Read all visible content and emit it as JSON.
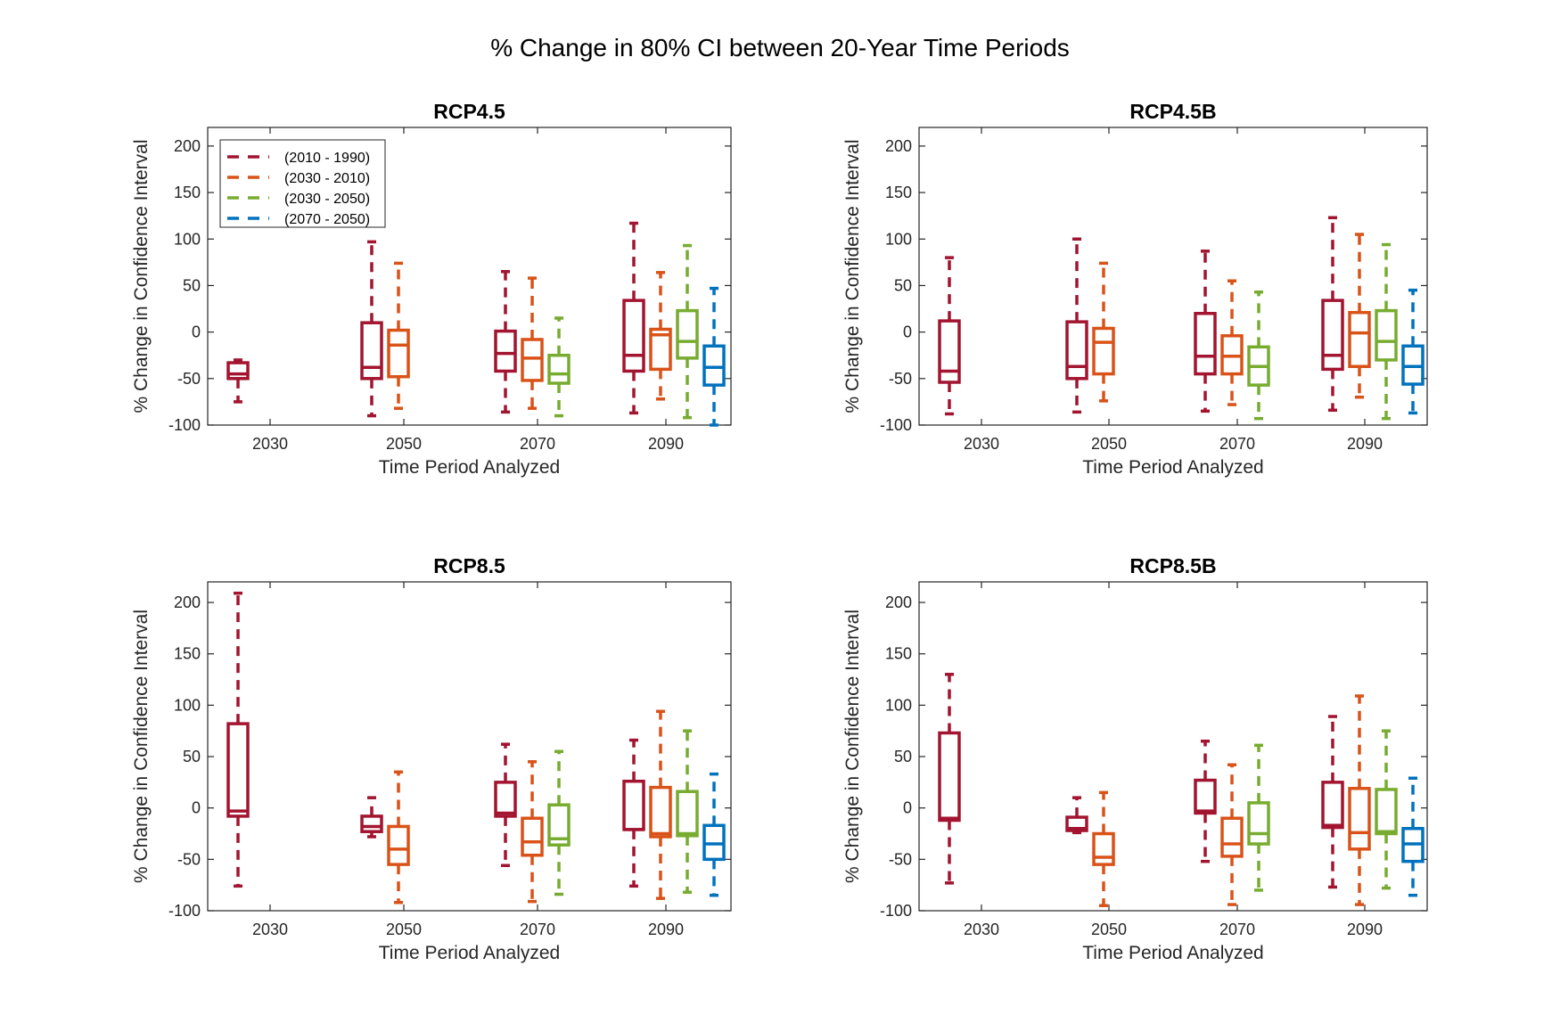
{
  "figure": {
    "title": "% Change in 80% CI between 20-Year Time Periods"
  },
  "colors": {
    "s1": "#a2142f",
    "s2": "#d95319",
    "s3": "#77ac30",
    "s4": "#0072bd"
  },
  "legend": {
    "placement": "top-left",
    "entries": [
      "(2010 - 1990)",
      "(2030 - 2010)",
      "(2030 - 2050)",
      "(2070 - 2050)"
    ]
  },
  "chart_data": [
    {
      "type": "box",
      "title": "RCP4.5",
      "xlabel": "Time Period Analyzed",
      "ylabel": "% Change in Confidence Interval",
      "ylim": [
        -100,
        220
      ],
      "yticks": [
        -100,
        -50,
        0,
        50,
        100,
        150,
        200
      ],
      "categories": [
        "2030",
        "2050",
        "2070",
        "2090"
      ],
      "show_legend": true,
      "boxes": [
        {
          "category": "2030",
          "series": 0,
          "min": -75,
          "q1": -50,
          "median": -45,
          "q3": -33,
          "max": -30
        },
        {
          "category": "2050",
          "series": 0,
          "min": -90,
          "q1": -50,
          "median": -38,
          "q3": 10,
          "max": 97
        },
        {
          "category": "2050",
          "series": 1,
          "min": -82,
          "q1": -48,
          "median": -14,
          "q3": 2,
          "max": 74
        },
        {
          "category": "2070",
          "series": 0,
          "min": -86,
          "q1": -42,
          "median": -23,
          "q3": 1,
          "max": 65
        },
        {
          "category": "2070",
          "series": 1,
          "min": -82,
          "q1": -52,
          "median": -28,
          "q3": -8,
          "max": 58
        },
        {
          "category": "2070",
          "series": 2,
          "min": -90,
          "q1": -55,
          "median": -45,
          "q3": -25,
          "max": 15
        },
        {
          "category": "2090",
          "series": 0,
          "min": -87,
          "q1": -42,
          "median": -25,
          "q3": 34,
          "max": 117
        },
        {
          "category": "2090",
          "series": 1,
          "min": -72,
          "q1": -40,
          "median": -3,
          "q3": 3,
          "max": 64
        },
        {
          "category": "2090",
          "series": 2,
          "min": -92,
          "q1": -28,
          "median": -10,
          "q3": 23,
          "max": 93
        },
        {
          "category": "2090",
          "series": 3,
          "min": -100,
          "q1": -57,
          "median": -38,
          "q3": -15,
          "max": 47
        }
      ]
    },
    {
      "type": "box",
      "title": "RCP4.5B",
      "xlabel": "Time Period Analyzed",
      "ylabel": "% Change in Confidence Interval",
      "ylim": [
        -100,
        220
      ],
      "yticks": [
        -100,
        -50,
        0,
        50,
        100,
        150,
        200
      ],
      "categories": [
        "2030",
        "2050",
        "2070",
        "2090"
      ],
      "show_legend": false,
      "boxes": [
        {
          "category": "2030",
          "series": 0,
          "min": -88,
          "q1": -54,
          "median": -42,
          "q3": 12,
          "max": 80
        },
        {
          "category": "2050",
          "series": 0,
          "min": -86,
          "q1": -50,
          "median": -37,
          "q3": 11,
          "max": 100
        },
        {
          "category": "2050",
          "series": 1,
          "min": -74,
          "q1": -45,
          "median": -11,
          "q3": 4,
          "max": 74
        },
        {
          "category": "2070",
          "series": 0,
          "min": -85,
          "q1": -45,
          "median": -26,
          "q3": 20,
          "max": 87
        },
        {
          "category": "2070",
          "series": 1,
          "min": -78,
          "q1": -45,
          "median": -26,
          "q3": -4,
          "max": 55
        },
        {
          "category": "2070",
          "series": 2,
          "min": -93,
          "q1": -57,
          "median": -37,
          "q3": -16,
          "max": 43
        },
        {
          "category": "2090",
          "series": 0,
          "min": -84,
          "q1": -40,
          "median": -25,
          "q3": 34,
          "max": 123
        },
        {
          "category": "2090",
          "series": 1,
          "min": -70,
          "q1": -37,
          "median": -1,
          "q3": 21,
          "max": 105
        },
        {
          "category": "2090",
          "series": 2,
          "min": -93,
          "q1": -30,
          "median": -10,
          "q3": 23,
          "max": 94
        },
        {
          "category": "2090",
          "series": 3,
          "min": -87,
          "q1": -56,
          "median": -37,
          "q3": -15,
          "max": 45
        }
      ]
    },
    {
      "type": "box",
      "title": "RCP8.5",
      "xlabel": "Time Period Analyzed",
      "ylabel": "% Change in Confidence Interval",
      "ylim": [
        -100,
        220
      ],
      "yticks": [
        -100,
        -50,
        0,
        50,
        100,
        150,
        200
      ],
      "categories": [
        "2030",
        "2050",
        "2070",
        "2090"
      ],
      "show_legend": false,
      "boxes": [
        {
          "category": "2030",
          "series": 0,
          "min": -76,
          "q1": -8,
          "median": -3,
          "q3": 82,
          "max": 209
        },
        {
          "category": "2050",
          "series": 0,
          "min": -28,
          "q1": -23,
          "median": -18,
          "q3": -8,
          "max": 10
        },
        {
          "category": "2050",
          "series": 1,
          "min": -92,
          "q1": -55,
          "median": -40,
          "q3": -18,
          "max": 35
        },
        {
          "category": "2070",
          "series": 0,
          "min": -56,
          "q1": -8,
          "median": -5,
          "q3": 25,
          "max": 62
        },
        {
          "category": "2070",
          "series": 1,
          "min": -91,
          "q1": -46,
          "median": -33,
          "q3": -10,
          "max": 45
        },
        {
          "category": "2070",
          "series": 2,
          "min": -84,
          "q1": -36,
          "median": -30,
          "q3": 3,
          "max": 55
        },
        {
          "category": "2090",
          "series": 0,
          "min": -76,
          "q1": -21,
          "median": -21,
          "q3": 26,
          "max": 66
        },
        {
          "category": "2090",
          "series": 1,
          "min": -88,
          "q1": -28,
          "median": -25,
          "q3": 20,
          "max": 94
        },
        {
          "category": "2090",
          "series": 2,
          "min": -82,
          "q1": -27,
          "median": -25,
          "q3": 16,
          "max": 75
        },
        {
          "category": "2090",
          "series": 3,
          "min": -85,
          "q1": -50,
          "median": -35,
          "q3": -17,
          "max": 33
        }
      ]
    },
    {
      "type": "box",
      "title": "RCP8.5B",
      "xlabel": "Time Period Analyzed",
      "ylabel": "% Change in Confidence Interval",
      "ylim": [
        -100,
        220
      ],
      "yticks": [
        -100,
        -50,
        0,
        50,
        100,
        150,
        200
      ],
      "categories": [
        "2030",
        "2050",
        "2070",
        "2090"
      ],
      "show_legend": false,
      "boxes": [
        {
          "category": "2030",
          "series": 0,
          "min": -73,
          "q1": -12,
          "median": -10,
          "q3": 73,
          "max": 130
        },
        {
          "category": "2050",
          "series": 0,
          "min": -24,
          "q1": -22,
          "median": -20,
          "q3": -9,
          "max": 10
        },
        {
          "category": "2050",
          "series": 1,
          "min": -95,
          "q1": -55,
          "median": -48,
          "q3": -25,
          "max": 15
        },
        {
          "category": "2070",
          "series": 0,
          "min": -52,
          "q1": -5,
          "median": -3,
          "q3": 27,
          "max": 65
        },
        {
          "category": "2070",
          "series": 1,
          "min": -94,
          "q1": -47,
          "median": -35,
          "q3": -10,
          "max": 42
        },
        {
          "category": "2070",
          "series": 2,
          "min": -80,
          "q1": -35,
          "median": -25,
          "q3": 5,
          "max": 61
        },
        {
          "category": "2090",
          "series": 0,
          "min": -77,
          "q1": -19,
          "median": -17,
          "q3": 25,
          "max": 89
        },
        {
          "category": "2090",
          "series": 1,
          "min": -94,
          "q1": -40,
          "median": -24,
          "q3": 19,
          "max": 109
        },
        {
          "category": "2090",
          "series": 2,
          "min": -78,
          "q1": -25,
          "median": -23,
          "q3": 18,
          "max": 75
        },
        {
          "category": "2090",
          "series": 3,
          "min": -85,
          "q1": -52,
          "median": -35,
          "q3": -20,
          "max": 29
        }
      ]
    }
  ]
}
